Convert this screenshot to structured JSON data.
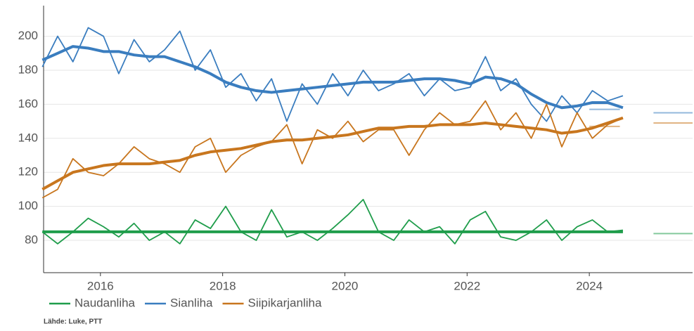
{
  "chart_data": {
    "type": "line",
    "source": "Lähde: Luke, PTT",
    "x": [
      2015.05,
      2015.3,
      2015.55,
      2015.8,
      2016.05,
      2016.3,
      2016.55,
      2016.8,
      2017.05,
      2017.3,
      2017.55,
      2017.8,
      2018.05,
      2018.3,
      2018.55,
      2018.8,
      2019.05,
      2019.3,
      2019.55,
      2019.8,
      2020.05,
      2020.3,
      2020.55,
      2020.8,
      2021.05,
      2021.3,
      2021.55,
      2021.8,
      2022.05,
      2022.3,
      2022.55,
      2022.8,
      2023.05,
      2023.3,
      2023.55,
      2023.8,
      2024.05,
      2024.3,
      2024.55
    ],
    "xlim": [
      2015.07,
      2025.69
    ],
    "xticks": [
      2016,
      2018,
      2020,
      2022,
      2024
    ],
    "ylim": [
      61,
      218
    ],
    "yticks": [
      80,
      100,
      120,
      140,
      160,
      180,
      200
    ],
    "grid": true,
    "series": [
      {
        "name": "Naudanliha",
        "color": "#1f9d4b",
        "values": [
          85,
          78,
          85,
          93,
          88,
          82,
          90,
          80,
          85,
          78,
          92,
          87,
          100,
          85,
          80,
          98,
          82,
          85,
          80,
          87,
          95,
          104,
          85,
          80,
          92,
          85,
          88,
          78,
          92,
          97,
          82,
          80,
          85,
          92,
          80,
          88,
          92,
          85,
          86
        ],
        "trend": [
          85,
          85,
          85,
          85,
          85,
          85,
          85,
          85,
          85,
          85,
          85,
          85,
          85,
          85,
          85,
          85,
          85,
          85,
          85,
          85,
          85,
          85,
          85,
          85,
          85,
          85,
          85,
          85,
          85,
          85,
          85,
          85,
          85,
          85,
          85,
          85,
          85,
          85,
          85
        ],
        "forecast": [
          {
            "x": [
              2024.0,
              2024.5
            ],
            "value": 85
          },
          {
            "x": [
              2025.05,
              2025.69
            ],
            "value": 84
          }
        ]
      },
      {
        "name": "Sianliha",
        "color": "#3a7dbf",
        "values": [
          182,
          200,
          185,
          205,
          200,
          178,
          198,
          185,
          192,
          203,
          180,
          192,
          170,
          178,
          162,
          175,
          150,
          172,
          160,
          178,
          165,
          180,
          168,
          172,
          178,
          165,
          175,
          168,
          170,
          188,
          168,
          175,
          160,
          150,
          165,
          155,
          168,
          162,
          165
        ],
        "trend": [
          186,
          190,
          194,
          193,
          191,
          191,
          189,
          188,
          188,
          185,
          182,
          178,
          173,
          170,
          168,
          167,
          168,
          169,
          170,
          171,
          172,
          173,
          173,
          173,
          174,
          175,
          175,
          174,
          172,
          176,
          175,
          172,
          166,
          161,
          158,
          159,
          161,
          161,
          158
        ],
        "forecast": [
          {
            "x": [
              2024.0,
              2024.5
            ],
            "value": 157
          },
          {
            "x": [
              2025.05,
              2025.69
            ],
            "value": 155
          }
        ]
      },
      {
        "name": "Siipikarjanliha",
        "color": "#c8761e",
        "values": [
          105,
          110,
          128,
          120,
          118,
          125,
          135,
          128,
          125,
          120,
          135,
          140,
          120,
          130,
          135,
          138,
          148,
          125,
          145,
          140,
          150,
          138,
          145,
          145,
          130,
          145,
          155,
          148,
          150,
          162,
          145,
          155,
          140,
          160,
          135,
          155,
          140,
          148,
          152
        ],
        "trend": [
          110,
          115,
          120,
          122,
          124,
          125,
          125,
          125,
          126,
          127,
          130,
          132,
          133,
          134,
          136,
          138,
          139,
          139,
          140,
          141,
          142,
          144,
          146,
          146,
          147,
          147,
          148,
          148,
          148,
          149,
          148,
          147,
          146,
          145,
          143,
          144,
          146,
          149,
          152
        ],
        "forecast": [
          {
            "x": [
              2024.0,
              2024.5
            ],
            "value": 147
          },
          {
            "x": [
              2025.05,
              2025.69
            ],
            "value": 149
          }
        ]
      }
    ]
  }
}
